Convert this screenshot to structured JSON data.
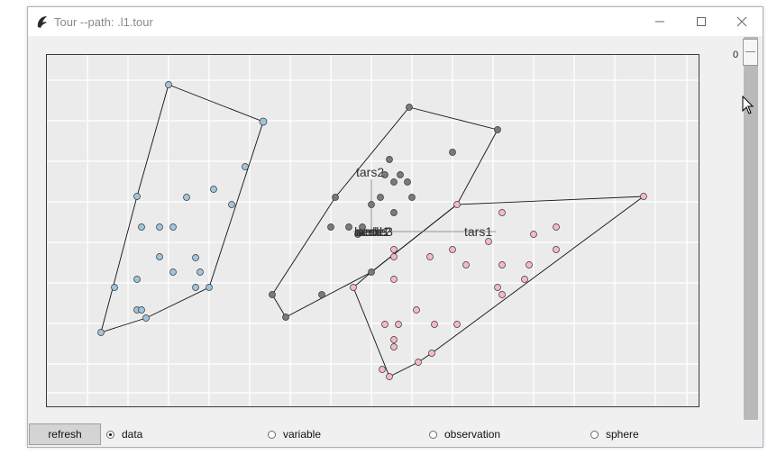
{
  "window": {
    "title": "Tour --path: .l1.tour",
    "controls": [
      "minimize",
      "maximize",
      "close"
    ]
  },
  "plot": {
    "axis_labels": [
      "tars2",
      "tars1",
      "head",
      "aede1",
      "aede2",
      "aede3"
    ],
    "groups": [
      {
        "name": "blue",
        "color": "#9fc5dd"
      },
      {
        "name": "grey",
        "color": "#7a7a7a"
      },
      {
        "name": "pink",
        "color": "#f6b9c3"
      }
    ]
  },
  "scale": {
    "value": "0"
  },
  "controls": {
    "refresh_label": "refresh",
    "radios": [
      {
        "label": "data",
        "selected": true
      },
      {
        "label": "variable",
        "selected": false
      },
      {
        "label": "observation",
        "selected": false
      },
      {
        "label": "sphere",
        "selected": false
      }
    ]
  }
}
